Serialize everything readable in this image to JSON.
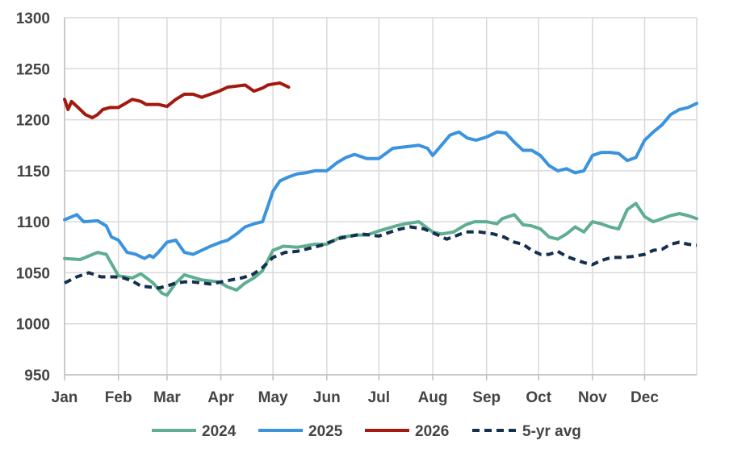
{
  "chart_data": {
    "type": "line",
    "title": "",
    "xlabel": "",
    "ylabel": "",
    "ylim": [
      950,
      1300
    ],
    "yticks": [
      950,
      1000,
      1050,
      1100,
      1150,
      1200,
      1250,
      1300
    ],
    "x_range": [
      1,
      365
    ],
    "x_tick_labels": [
      "Jan",
      "Feb",
      "Mar",
      "Apr",
      "May",
      "Jun",
      "Jul",
      "Aug",
      "Sep",
      "Oct",
      "Nov",
      "Dec"
    ],
    "x_tick_days": [
      1,
      32,
      60,
      91,
      121,
      152,
      182,
      213,
      244,
      274,
      305,
      335
    ],
    "grid": true,
    "legend_position": "bottom",
    "series": [
      {
        "name": "2024",
        "color": "#5fae91",
        "dash": "solid",
        "x": [
          1,
          10,
          20,
          25,
          32,
          40,
          45,
          52,
          57,
          60,
          65,
          70,
          80,
          90,
          95,
          100,
          105,
          110,
          115,
          121,
          127,
          135,
          145,
          152,
          160,
          170,
          175,
          182,
          192,
          197,
          205,
          213,
          218,
          225,
          232,
          237,
          244,
          250,
          253,
          260,
          265,
          270,
          275,
          280,
          285,
          290,
          295,
          300,
          305,
          310,
          315,
          320,
          325,
          330,
          335,
          340,
          350,
          355,
          360,
          365
        ],
        "values": [
          1064,
          1063,
          1070,
          1068,
          1047,
          1045,
          1049,
          1040,
          1030,
          1028,
          1040,
          1048,
          1043,
          1041,
          1036,
          1033,
          1040,
          1045,
          1052,
          1072,
          1076,
          1075,
          1078,
          1078,
          1085,
          1087,
          1087,
          1091,
          1096,
          1098,
          1100,
          1090,
          1088,
          1090,
          1097,
          1100,
          1100,
          1098,
          1103,
          1107,
          1097,
          1096,
          1093,
          1085,
          1083,
          1088,
          1095,
          1090,
          1100,
          1098,
          1095,
          1093,
          1112,
          1118,
          1105,
          1100,
          1106,
          1108,
          1106,
          1103
        ]
      },
      {
        "name": "2025",
        "color": "#3b93de",
        "dash": "solid",
        "x": [
          1,
          8,
          12,
          20,
          25,
          28,
          32,
          37,
          42,
          47,
          50,
          52,
          55,
          60,
          65,
          70,
          75,
          80,
          85,
          91,
          95,
          100,
          105,
          110,
          115,
          118,
          121,
          125,
          130,
          135,
          140,
          145,
          152,
          158,
          163,
          168,
          175,
          180,
          182,
          190,
          200,
          205,
          210,
          213,
          218,
          223,
          228,
          233,
          238,
          244,
          250,
          255,
          260,
          265,
          270,
          275,
          280,
          285,
          290,
          295,
          300,
          305,
          310,
          315,
          320,
          325,
          330,
          335,
          340,
          345,
          350,
          355,
          360,
          365
        ],
        "values": [
          1102,
          1107,
          1100,
          1101,
          1096,
          1085,
          1082,
          1070,
          1068,
          1064,
          1067,
          1065,
          1070,
          1080,
          1082,
          1070,
          1068,
          1072,
          1076,
          1080,
          1082,
          1088,
          1095,
          1098,
          1100,
          1115,
          1130,
          1140,
          1144,
          1147,
          1148,
          1150,
          1150,
          1158,
          1163,
          1166,
          1162,
          1162,
          1162,
          1172,
          1174,
          1175,
          1172,
          1165,
          1175,
          1185,
          1188,
          1182,
          1180,
          1183,
          1188,
          1187,
          1178,
          1170,
          1170,
          1165,
          1155,
          1150,
          1152,
          1148,
          1150,
          1165,
          1168,
          1168,
          1167,
          1160,
          1163,
          1180,
          1188,
          1195,
          1205,
          1210,
          1212,
          1216
        ]
      },
      {
        "name": "2026",
        "color": "#a3190f",
        "dash": "solid",
        "x": [
          1,
          3,
          5,
          10,
          13,
          17,
          20,
          23,
          27,
          32,
          35,
          40,
          45,
          48,
          50,
          55,
          60,
          65,
          70,
          75,
          80,
          85,
          90,
          95,
          100,
          105,
          110,
          115,
          118,
          121,
          125,
          130
        ],
        "values": [
          1220,
          1210,
          1218,
          1210,
          1205,
          1202,
          1205,
          1210,
          1212,
          1212,
          1215,
          1220,
          1218,
          1215,
          1215,
          1215,
          1213,
          1220,
          1225,
          1225,
          1222,
          1225,
          1228,
          1232,
          1233,
          1234,
          1228,
          1231,
          1234,
          1235,
          1236,
          1232
        ]
      },
      {
        "name": "5-yr avg",
        "color": "#14304f",
        "dash": "dashed",
        "x": [
          1,
          8,
          15,
          22,
          30,
          35,
          40,
          45,
          50,
          55,
          60,
          65,
          70,
          75,
          80,
          85,
          91,
          97,
          103,
          109,
          115,
          121,
          128,
          135,
          142,
          149,
          152,
          160,
          166,
          172,
          182,
          192,
          200,
          208,
          216,
          221,
          226,
          232,
          240,
          248,
          254,
          260,
          265,
          270,
          275,
          280,
          285,
          290,
          295,
          300,
          305,
          310,
          316,
          322,
          328,
          335,
          340,
          345,
          350,
          355,
          360,
          365
        ],
        "values": [
          1040,
          1046,
          1050,
          1046,
          1046,
          1045,
          1042,
          1037,
          1036,
          1035,
          1037,
          1040,
          1041,
          1041,
          1040,
          1039,
          1041,
          1043,
          1045,
          1048,
          1055,
          1065,
          1070,
          1071,
          1074,
          1077,
          1079,
          1084,
          1086,
          1088,
          1086,
          1092,
          1095,
          1093,
          1087,
          1083,
          1086,
          1090,
          1090,
          1088,
          1085,
          1080,
          1078,
          1072,
          1068,
          1068,
          1071,
          1066,
          1063,
          1060,
          1058,
          1062,
          1065,
          1065,
          1066,
          1068,
          1072,
          1073,
          1078,
          1080,
          1078,
          1077
        ]
      }
    ]
  }
}
